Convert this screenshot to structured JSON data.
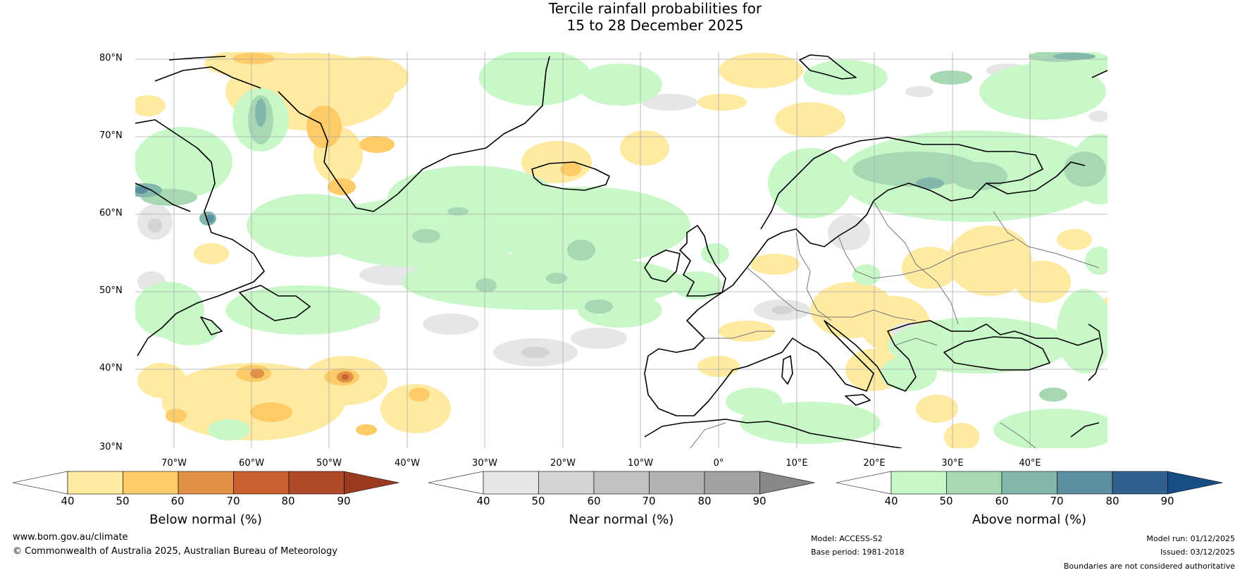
{
  "title_line1": "Tercile rainfall probabilities for",
  "title_line2": "15 to 28 December 2025",
  "lat_labels": [
    "80°N",
    "70°N",
    "60°N",
    "50°N",
    "40°N",
    "30°N"
  ],
  "lon_labels": [
    "70°W",
    "60°W",
    "50°W",
    "40°W",
    "30°W",
    "20°W",
    "10°W",
    "0°",
    "10°E",
    "20°E",
    "30°E",
    "40°E"
  ],
  "colorbars": {
    "below": {
      "label": "Below normal (%)",
      "ticks": [
        "40",
        "50",
        "60",
        "70",
        "80",
        "90"
      ],
      "colors": [
        "#ffffff",
        "#feeaa0",
        "#fecb66",
        "#e19144",
        "#cd6031",
        "#b14a2a",
        "#9a3a20"
      ]
    },
    "near": {
      "label": "Near normal (%)",
      "ticks": [
        "40",
        "50",
        "60",
        "70",
        "80",
        "90"
      ],
      "colors": [
        "#ffffff",
        "#e6e6e6",
        "#d3d3d3",
        "#c2c2c2",
        "#b2b2b2",
        "#a2a2a2",
        "#888888"
      ]
    },
    "above": {
      "label": "Above normal (%)",
      "ticks": [
        "40",
        "50",
        "60",
        "70",
        "80",
        "90"
      ],
      "colors": [
        "#ffffff",
        "#c8f8c8",
        "#a7d8b4",
        "#82b7ab",
        "#5c90a0",
        "#2f6090",
        "#194e84"
      ]
    }
  },
  "footer": {
    "website": "www.bom.gov.au/climate",
    "copyright": "© Commonwealth of Australia 2025, Australian Bureau of Meteorology",
    "model": "Model: ACCESS-S2",
    "base_period": "Base period: 1981-2018",
    "model_run": "Model run: 01/12/2025",
    "issued": "Issued: 03/12/2025",
    "disclaimer": "Boundaries are not considered authoritative"
  }
}
